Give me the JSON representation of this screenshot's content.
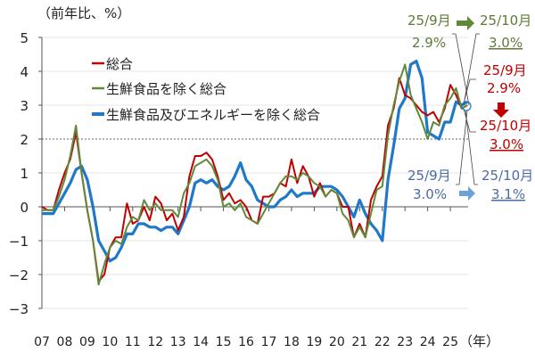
{
  "chart_data": {
    "type": "line",
    "ylabel": "（前年比、%）",
    "xlabel": "（年）",
    "ylim": [
      -3,
      5
    ],
    "yticks": [
      "5",
      "4",
      "3",
      "2",
      "1",
      "0",
      "−1",
      "−2",
      "−3"
    ],
    "xticks": [
      "07",
      "08",
      "09",
      "10",
      "11",
      "12",
      "13",
      "14",
      "15",
      "16",
      "17",
      "18",
      "19",
      "20",
      "21",
      "22",
      "23",
      "24",
      "25"
    ],
    "reference_line": 2,
    "x_start": 2007.0,
    "x_step": 0.25,
    "series": [
      {
        "name": "総合",
        "color": "#c00000",
        "values": [
          0.0,
          -0.1,
          -0.1,
          0.5,
          1.0,
          1.4,
          2.2,
          1.0,
          -0.1,
          -1.0,
          -2.2,
          -2.0,
          -1.2,
          -0.9,
          -0.9,
          0.1,
          -0.5,
          -0.4,
          0.0,
          -0.4,
          0.3,
          0.1,
          -0.4,
          -0.2,
          -0.7,
          -0.3,
          0.9,
          1.5,
          1.5,
          1.6,
          1.4,
          0.9,
          0.2,
          0.4,
          0.1,
          0.2,
          0.0,
          -0.4,
          -0.5,
          0.3,
          0.3,
          0.4,
          0.7,
          0.6,
          1.4,
          0.7,
          1.2,
          0.9,
          0.3,
          0.7,
          0.3,
          0.5,
          0.4,
          0.0,
          0.0,
          -0.9,
          -0.5,
          -0.9,
          0.2,
          0.6,
          0.9,
          2.4,
          2.9,
          3.8,
          3.3,
          3.2,
          3.0,
          2.8,
          2.7,
          2.8,
          2.5,
          2.9,
          3.6,
          3.3,
          2.9,
          3.0
        ]
      },
      {
        "name": "生鮮食品を除く総合",
        "color": "#5f8a3a",
        "values": [
          -0.1,
          -0.1,
          -0.1,
          0.3,
          0.8,
          1.5,
          2.4,
          1.0,
          -0.1,
          -1.0,
          -2.3,
          -1.7,
          -1.2,
          -1.0,
          -1.1,
          -0.6,
          -0.3,
          -0.4,
          0.2,
          -0.1,
          0.1,
          -0.1,
          -0.1,
          -0.1,
          -0.3,
          0.4,
          0.7,
          1.2,
          1.3,
          1.4,
          1.2,
          0.8,
          0.0,
          0.1,
          -0.1,
          0.1,
          -0.3,
          -0.4,
          -0.5,
          -0.2,
          0.1,
          0.4,
          0.7,
          0.9,
          0.9,
          0.8,
          1.0,
          0.9,
          0.7,
          0.6,
          0.3,
          0.5,
          0.4,
          -0.2,
          -0.4,
          -0.9,
          -0.6,
          -0.9,
          -0.2,
          0.5,
          0.6,
          2.1,
          3.0,
          3.7,
          4.2,
          3.3,
          2.9,
          2.5,
          2.0,
          2.5,
          2.4,
          3.0,
          3.2,
          3.5,
          2.9,
          3.0
        ]
      },
      {
        "name": "生鮮食品及びエネルギーを除く総合",
        "color": "#1f78c8",
        "values": [
          -0.2,
          -0.2,
          -0.2,
          0.1,
          0.4,
          0.7,
          1.1,
          1.2,
          0.8,
          0.0,
          -1.0,
          -1.3,
          -1.6,
          -1.5,
          -1.2,
          -0.8,
          -0.8,
          -0.5,
          -0.5,
          -0.6,
          -0.6,
          -0.7,
          -0.6,
          -0.6,
          -0.8,
          -0.4,
          0.0,
          0.7,
          0.8,
          0.7,
          0.8,
          0.6,
          0.5,
          0.6,
          0.9,
          1.3,
          0.8,
          0.6,
          0.2,
          0.1,
          0.0,
          0.0,
          0.2,
          0.3,
          0.5,
          0.3,
          0.4,
          0.4,
          0.4,
          0.6,
          0.6,
          0.6,
          0.5,
          0.3,
          0.0,
          -0.3,
          0.2,
          -0.2,
          -0.5,
          -0.7,
          -1.0,
          0.8,
          1.8,
          2.9,
          3.2,
          4.2,
          4.3,
          3.8,
          2.2,
          2.1,
          2.0,
          2.5,
          2.5,
          3.1,
          3.0,
          3.1
        ]
      }
    ],
    "annotations": {
      "green": {
        "from_label": "25/9月",
        "from_value": "2.9%",
        "to_label": "25/10月",
        "to_value": "3.0%",
        "color": "#5f7a3a"
      },
      "red": {
        "from_label": "25/9月",
        "from_value": "2.9%",
        "to_label": "25/10月",
        "to_value": "3.0%",
        "color": "#c00000"
      },
      "blue": {
        "from_label": "25/9月",
        "from_value": "3.0%",
        "to_label": "25/10月",
        "to_value": "3.1%",
        "color": "#4a6aa8"
      }
    }
  }
}
